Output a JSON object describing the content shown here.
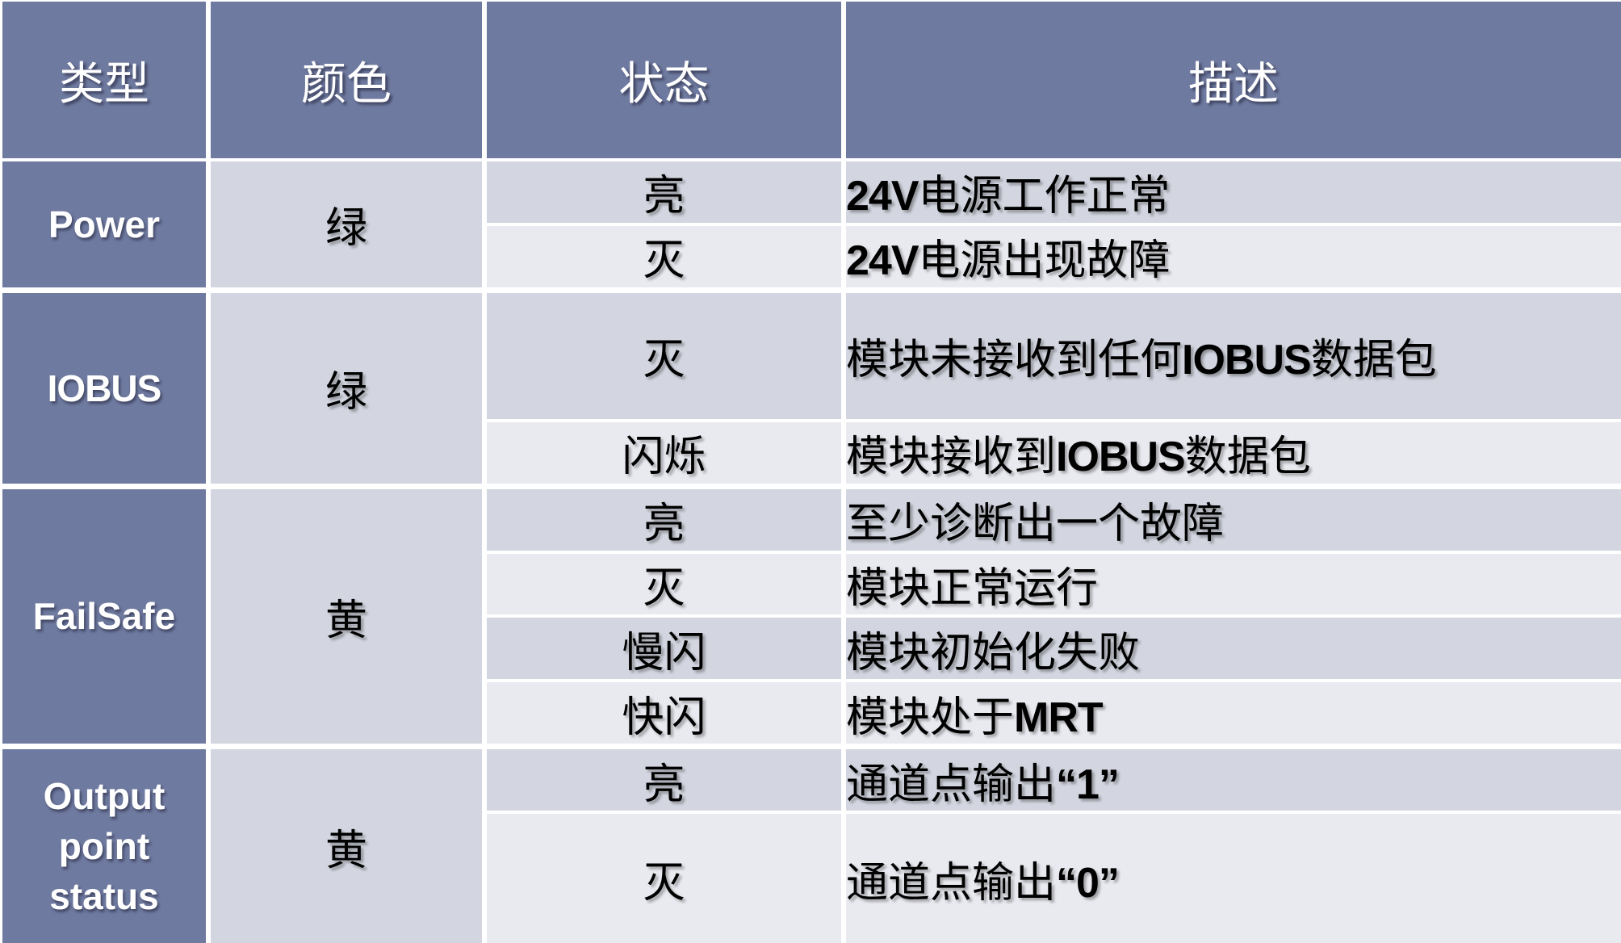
{
  "table": {
    "colors": {
      "header_bg": "#6F7AA0",
      "type_cell_bg": "#6F7AA0",
      "row_band_dark": "#D3D6E0",
      "row_band_light": "#E9EAF0",
      "separator": "#FFFFFF",
      "header_text": "#FFFFFF",
      "body_text": "#000000"
    },
    "columns": [
      {
        "label": "类型"
      },
      {
        "label": "颜色"
      },
      {
        "label": "状态"
      },
      {
        "label": "描述"
      }
    ],
    "groups": [
      {
        "type": "Power",
        "color": "绿",
        "rows": [
          {
            "status": "亮",
            "description": "24V电源工作正常"
          },
          {
            "status": "灭",
            "description": "24V电源出现故障"
          }
        ]
      },
      {
        "type": "IOBUS",
        "color": "绿",
        "rows": [
          {
            "status": "灭",
            "description": "模块未接收到任何IOBUS数据包"
          },
          {
            "status": "闪烁",
            "description": "模块接收到IOBUS数据包"
          }
        ]
      },
      {
        "type": "FailSafe",
        "color": "黄",
        "rows": [
          {
            "status": "亮",
            "description": "至少诊断出一个故障"
          },
          {
            "status": "灭",
            "description": "模块正常运行"
          },
          {
            "status": "慢闪",
            "description": "模块初始化失败"
          },
          {
            "status": "快闪",
            "description": "模块处于MRT"
          }
        ]
      },
      {
        "type": "Output point status",
        "color": "黄",
        "rows": [
          {
            "status": "亮",
            "description": "通道点输出“1”"
          },
          {
            "status": "灭",
            "description": "通道点输出“0”"
          }
        ]
      }
    ]
  }
}
